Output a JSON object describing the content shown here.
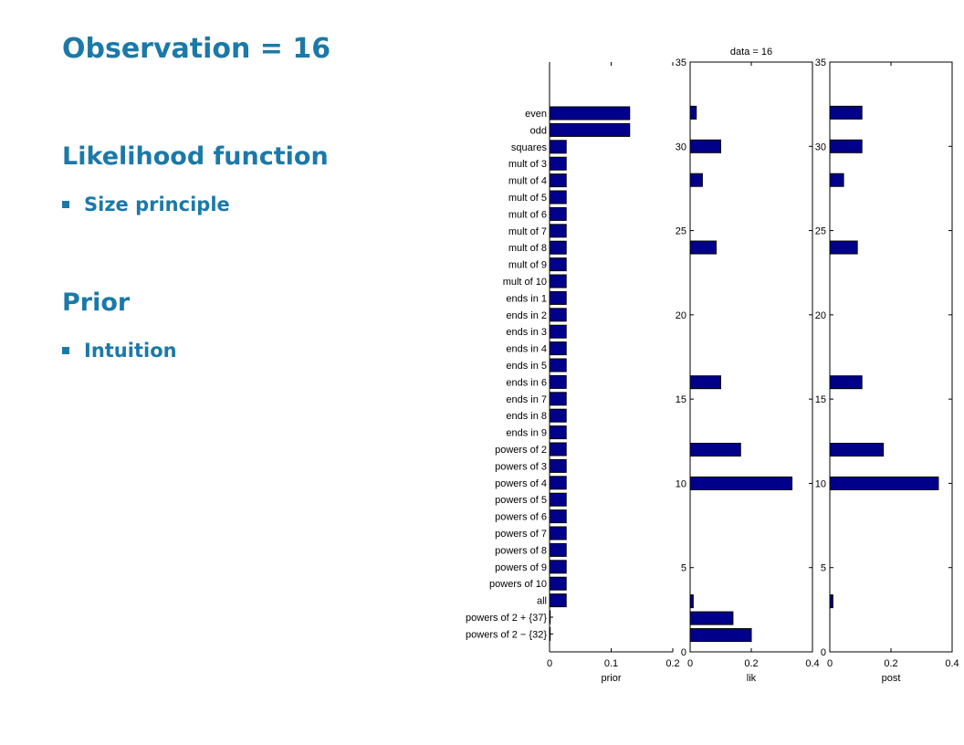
{
  "slide": {
    "title": "Observation = 16",
    "section1": "Likelihood function",
    "bullet1": "Size principle",
    "section2": "Prior",
    "bullet2": "Intuition"
  },
  "colors": {
    "heading": "#1b79a8",
    "bar": "#00008b"
  },
  "chart_data": {
    "type": "bar",
    "orientation": "horizontal",
    "title": "data = 16",
    "categories": [
      "even",
      "odd",
      "squares",
      "mult of 3",
      "mult of 4",
      "mult of 5",
      "mult of 6",
      "mult of 7",
      "mult of 8",
      "mult of 9",
      "mult of 10",
      "ends in 1",
      "ends in 2",
      "ends in 3",
      "ends in 4",
      "ends in 5",
      "ends in 6",
      "ends in 7",
      "ends in 8",
      "ends in 9",
      "powers of 2",
      "powers of 3",
      "powers of 4",
      "powers of 5",
      "powers of 6",
      "powers of 7",
      "powers of 8",
      "powers of 9",
      "powers of 10",
      "all",
      "powers of 2 + {37}",
      "powers of 2 − {32}"
    ],
    "panels": [
      {
        "xlabel": "prior",
        "xlim": [
          0,
          0.2
        ],
        "xticks": [
          "0",
          "0.1",
          "0.2"
        ],
        "values": [
          0.13,
          0.13,
          0.027,
          0.027,
          0.027,
          0.027,
          0.027,
          0.027,
          0.027,
          0.027,
          0.027,
          0.027,
          0.027,
          0.027,
          0.027,
          0.027,
          0.027,
          0.027,
          0.027,
          0.027,
          0.027,
          0.027,
          0.027,
          0.027,
          0.027,
          0.027,
          0.027,
          0.027,
          0.027,
          0.027,
          0.001,
          0.001
        ]
      },
      {
        "xlabel": "lik",
        "xlim": [
          0,
          0.4
        ],
        "xticks": [
          "0",
          "0.2",
          "0.4"
        ],
        "ylim": [
          0,
          35
        ],
        "yticks": [
          "0",
          "5",
          "10",
          "15",
          "20",
          "25",
          "30",
          "35"
        ],
        "values": [
          {
            "y": 32,
            "x": 0.02
          },
          {
            "y": 30,
            "x": 0.1
          },
          {
            "y": 28,
            "x": 0.04
          },
          {
            "y": 24,
            "x": 0.085
          },
          {
            "y": 16,
            "x": 0.1
          },
          {
            "y": 12,
            "x": 0.165
          },
          {
            "y": 10,
            "x": 0.333
          },
          {
            "y": 3,
            "x": 0.01
          },
          {
            "y": 2,
            "x": 0.14
          },
          {
            "y": 1,
            "x": 0.2
          }
        ]
      },
      {
        "xlabel": "post",
        "xlim": [
          0,
          0.4
        ],
        "xticks": [
          "0",
          "0.2",
          "0.4"
        ],
        "ylim": [
          0,
          35
        ],
        "yticks": [
          "0",
          "5",
          "10",
          "15",
          "20",
          "25",
          "30",
          "35"
        ],
        "values": [
          {
            "y": 32,
            "x": 0.105
          },
          {
            "y": 30,
            "x": 0.105
          },
          {
            "y": 28,
            "x": 0.045
          },
          {
            "y": 24,
            "x": 0.09
          },
          {
            "y": 16,
            "x": 0.105
          },
          {
            "y": 12,
            "x": 0.175
          },
          {
            "y": 10,
            "x": 0.355
          },
          {
            "y": 3,
            "x": 0.01
          }
        ]
      }
    ]
  }
}
